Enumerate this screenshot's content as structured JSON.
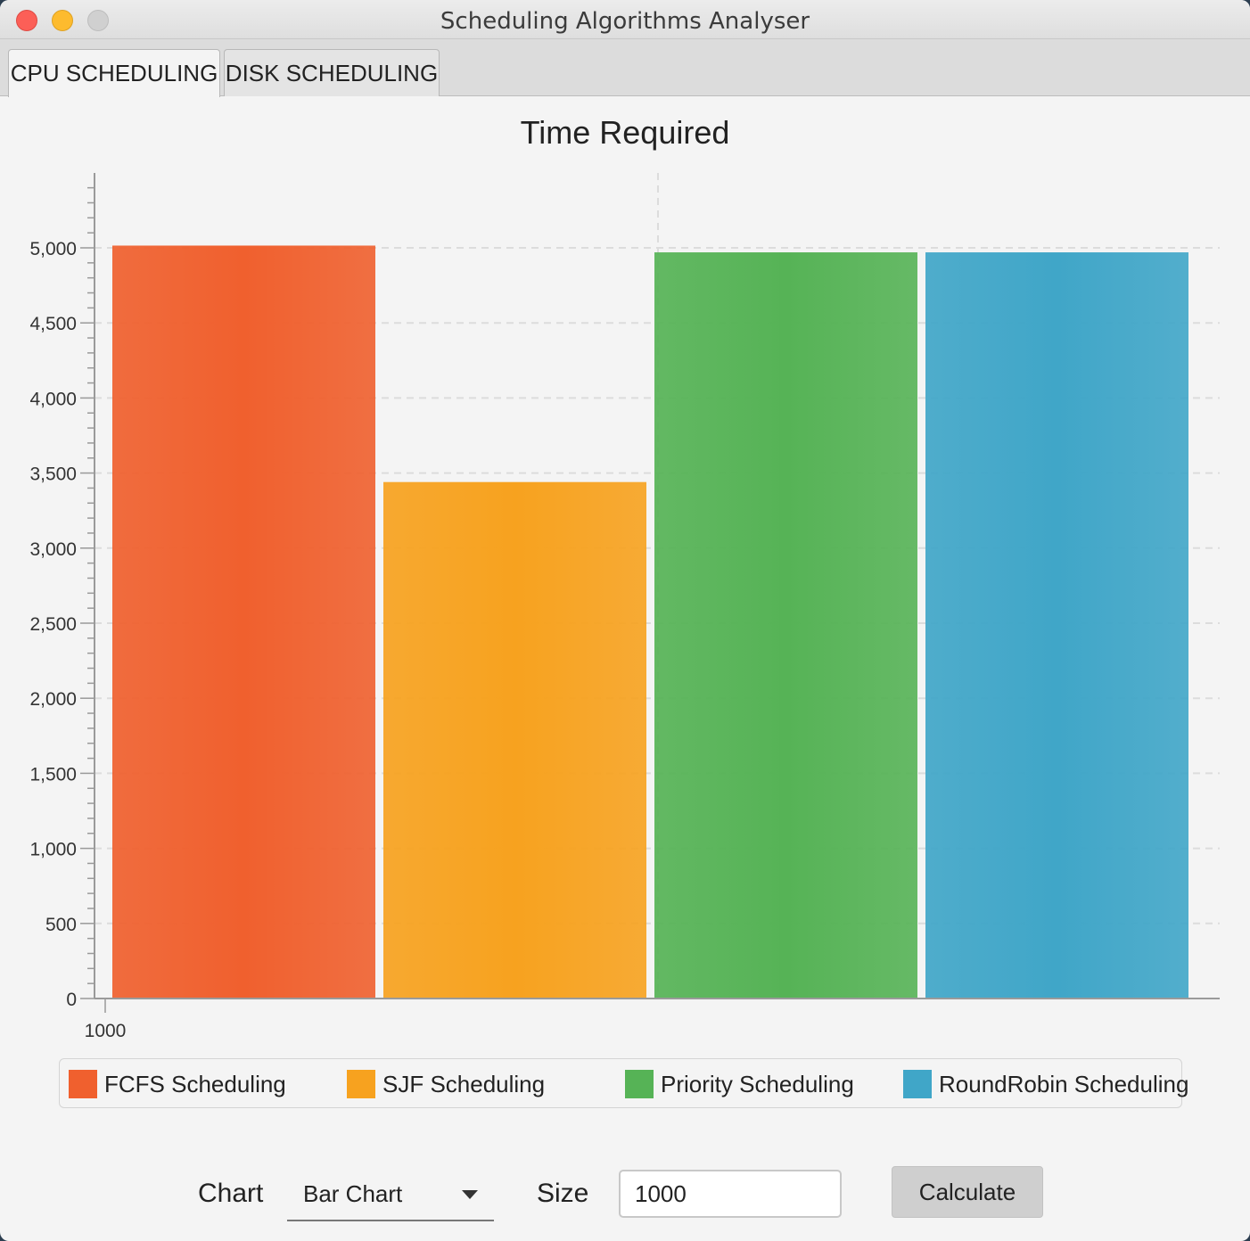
{
  "window": {
    "title": "Scheduling Algorithms Analyser"
  },
  "tabs": [
    {
      "label": "CPU SCHEDULING",
      "active": true
    },
    {
      "label": "DISK SCHEDULING",
      "active": false
    }
  ],
  "chart_data": {
    "type": "bar",
    "title": "Time Required",
    "xlabel": "",
    "ylabel": "",
    "categories": [
      "1000"
    ],
    "series": [
      {
        "name": "FCFS Scheduling",
        "color": "#f0602e",
        "values": [
          5015
        ]
      },
      {
        "name": "SJF Scheduling",
        "color": "#f7a21f",
        "values": [
          3440
        ]
      },
      {
        "name": "Priority Scheduling",
        "color": "#56b356",
        "values": [
          4970
        ]
      },
      {
        "name": "RoundRobin Scheduling",
        "color": "#40a6c8",
        "values": [
          4970
        ]
      }
    ],
    "ylim": [
      0,
      5500
    ],
    "yticks": [
      0,
      500,
      1000,
      1500,
      2000,
      2500,
      3000,
      3500,
      4000,
      4500,
      5000
    ],
    "ytick_labels": [
      "0",
      "500",
      "1,000",
      "1,500",
      "2,000",
      "2,500",
      "3,000",
      "3,500",
      "4,000",
      "4,500",
      "5,000"
    ],
    "grid": true,
    "legend_position": "bottom"
  },
  "controls": {
    "chart_label": "Chart",
    "chart_select_value": "Bar Chart",
    "size_label": "Size",
    "size_value": "1000",
    "calculate_label": "Calculate"
  }
}
